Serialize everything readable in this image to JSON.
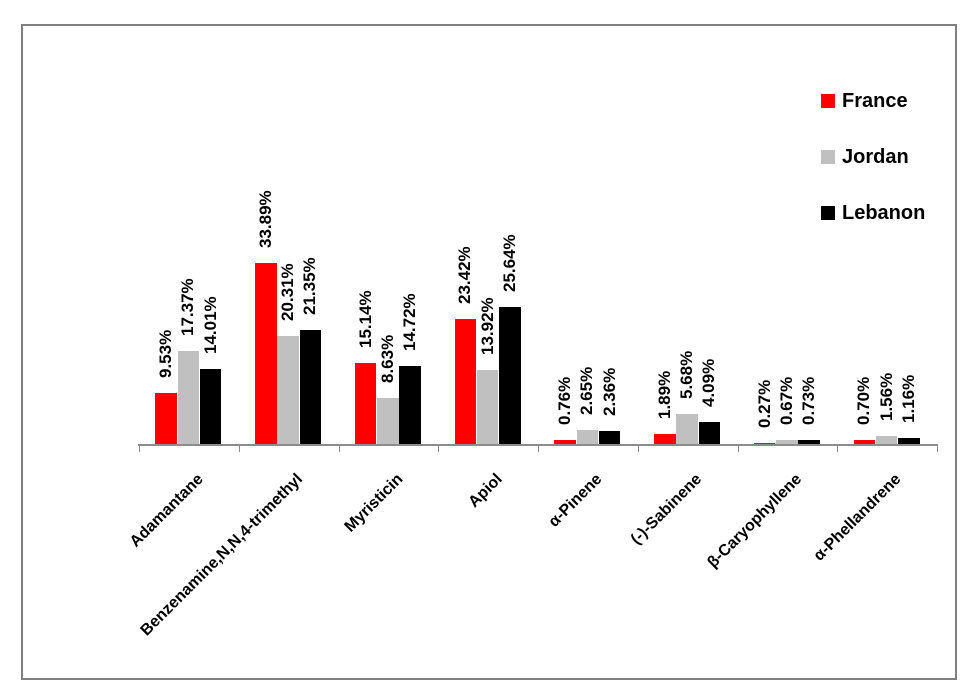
{
  "chart_data": {
    "type": "bar",
    "title": "",
    "xlabel": "",
    "ylabel": "",
    "categories": [
      "Adamantane",
      "Benzenamine,N,N,4-trimethyl",
      "Myristicin",
      "Apiol",
      "α-Pinene",
      "(-)-Sabinene",
      "β-Caryophyllene",
      "α-Phellandrene"
    ],
    "series": [
      {
        "name": "France",
        "color": "#ff0000",
        "values": [
          9.53,
          33.89,
          15.14,
          23.42,
          0.76,
          1.89,
          0.27,
          0.7
        ],
        "labels": [
          "9.53%",
          "33.89%",
          "15.14%",
          "23.42%",
          "0.76%",
          "1.89%",
          "0.27%",
          "0.70%"
        ]
      },
      {
        "name": "Jordan",
        "color": "#c0c0c0",
        "values": [
          17.37,
          20.31,
          8.63,
          13.92,
          2.65,
          5.68,
          0.67,
          1.56
        ],
        "labels": [
          "17.37%",
          "20.31%",
          "8.63%",
          "13.92%",
          "2.65%",
          "5.68%",
          "0.67%",
          "1.56%"
        ]
      },
      {
        "name": "Lebanon",
        "color": "#000000",
        "values": [
          14.01,
          21.35,
          14.72,
          25.64,
          2.36,
          4.09,
          0.73,
          1.16
        ],
        "labels": [
          "14.01%",
          "21.35%",
          "14.72%",
          "25.64%",
          "2.36%",
          "4.09%",
          "0.73%",
          "1.16%"
        ]
      }
    ],
    "data_labels_rotation_deg": 90,
    "category_labels_rotation_deg": 45,
    "y_axis_visible": false,
    "gridlines": false,
    "legend_position": "upper-right",
    "axis_color": "#8c8c8c",
    "frame_border_color": "#808080",
    "background_color": "#ffffff"
  }
}
